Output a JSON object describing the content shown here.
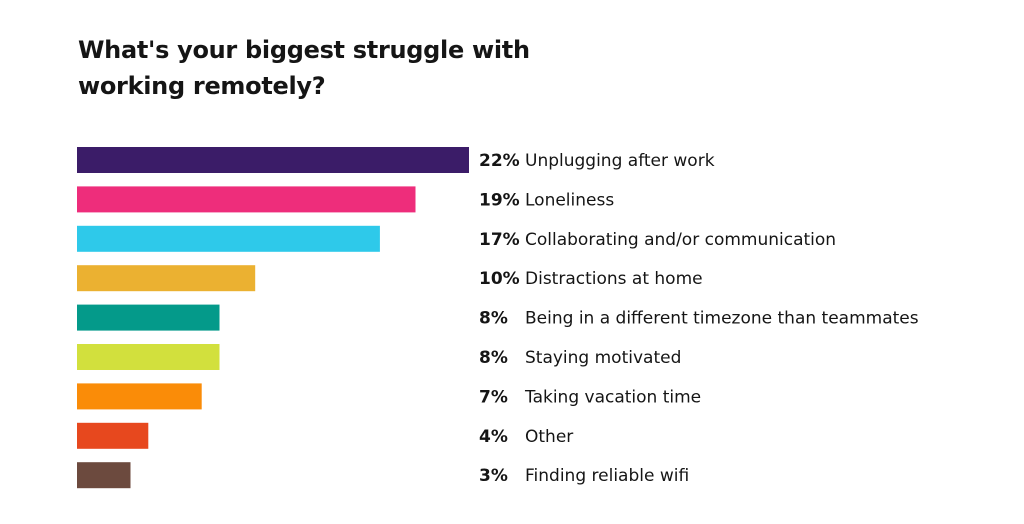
{
  "chart_data": {
    "type": "bar",
    "orientation": "horizontal",
    "title": "What's your biggest struggle with working remotely?",
    "categories": [
      "Unplugging after work",
      "Loneliness",
      "Collaborating and/or communication",
      "Distractions at home",
      "Being in a different timezone than teammates",
      "Staying motivated",
      "Taking vacation time",
      "Other",
      "Finding reliable wifi"
    ],
    "values": [
      22,
      19,
      17,
      10,
      8,
      8,
      7,
      4,
      3
    ],
    "value_labels": [
      "22%",
      "19%",
      "17%",
      "10%",
      "8%",
      "8%",
      "7%",
      "4%",
      "3%"
    ],
    "colors": [
      "#3b1c68",
      "#ee2d7b",
      "#2ec9ea",
      "#ebb131",
      "#049a8a",
      "#d2e03d",
      "#fa8c08",
      "#e7481e",
      "#6c4a3e"
    ],
    "xlim": [
      0,
      22
    ],
    "grid": false,
    "legend": "none"
  }
}
